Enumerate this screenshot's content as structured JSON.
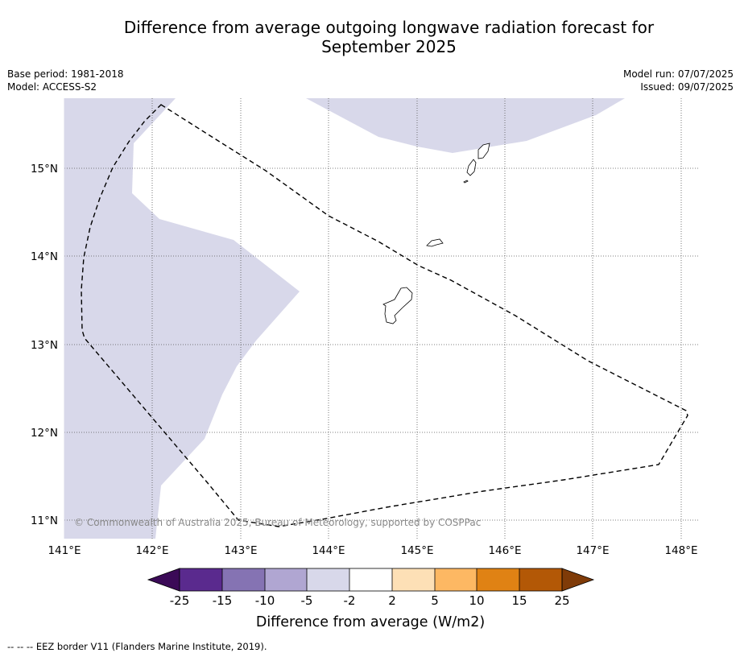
{
  "title_line1": "Difference from average outgoing longwave radiation forecast for",
  "title_line2": "September 2025",
  "meta": {
    "base_period": "Base period: 1981-2018",
    "model": "Model: ACCESS-S2",
    "model_run": "Model run: 07/07/2025",
    "issued": "Issued: 09/07/2025"
  },
  "map": {
    "lon_ticks": [
      "141°E",
      "142°E",
      "143°E",
      "144°E",
      "145°E",
      "146°E",
      "147°E",
      "148°E"
    ],
    "lat_ticks": [
      "15°N",
      "14°N",
      "13°N",
      "12°N",
      "11°N"
    ],
    "copyright": "© Commonwealth of Australia 2025, Bureau of Meteorology, supported by COSPPac"
  },
  "colorbar": {
    "title": "Difference from average (W/m2)",
    "tick_labels": [
      "-25",
      "-15",
      "-10",
      "-5",
      "-2",
      "2",
      "5",
      "10",
      "15",
      "25"
    ],
    "colors": {
      "below_-25": "#3b0a57",
      "-25_-15": "#5a2a8e",
      "-15_-10": "#8573b3",
      "-10_-5": "#b0a6d2",
      "-5_-2": "#d8d8ea",
      "-2_2": "#ffffff",
      "2_5": "#fde0b6",
      "5_10": "#fdb863",
      "10_15": "#e08214",
      "15_25": "#b35806",
      "above_25": "#7f3b08"
    }
  },
  "footer": "--  --  -- EEZ border V11 (Flanders Marine Institute, 2019)."
}
